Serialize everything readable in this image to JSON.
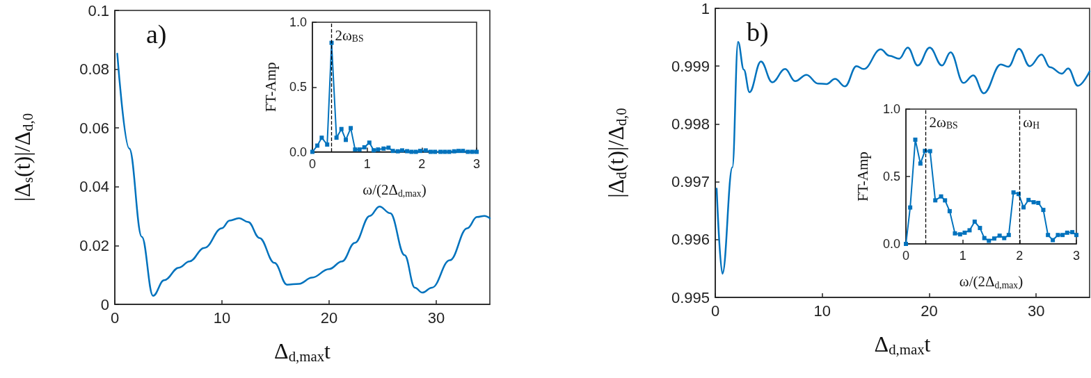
{
  "chart_data": [
    {
      "type": "line",
      "xlabel": "Δ$_{d,max}$t",
      "ylabel": "|Δ$_{s}$(t)|/Δ$_{d,0}$",
      "annotations": [
        "a)"
      ],
      "marker": "none",
      "grid": false,
      "xlim": [
        0,
        35
      ],
      "xticks": [
        0,
        10,
        20,
        30
      ],
      "ylim": [
        0,
        0.1
      ],
      "yticks": [
        0,
        0.02,
        0.04,
        0.06,
        0.08,
        0.1
      ],
      "x": [
        0.23,
        1.35,
        2.52,
        3.57,
        4.6,
        6.0,
        6.96,
        8.36,
        10,
        10.7,
        11.6,
        12.45,
        13.5,
        14.9,
        16.07,
        17.2,
        18.4,
        20,
        21.2,
        22.4,
        23.8,
        24.7,
        25.7,
        27.05,
        28,
        28.7,
        29.6,
        31.26,
        32.9,
        33.8,
        34.5,
        35
      ],
      "series": [
        {
          "color": "#0072bd",
          "values": [
            0.0853,
            0.053,
            0.023,
            0.0029,
            0.0082,
            0.0125,
            0.0146,
            0.0192,
            0.0259,
            0.0285,
            0.0293,
            0.028,
            0.0226,
            0.0141,
            0.0067,
            0.007,
            0.0091,
            0.012,
            0.0146,
            0.0209,
            0.0301,
            0.0333,
            0.031,
            0.0167,
            0.0057,
            0.004,
            0.0057,
            0.015,
            0.0259,
            0.0297,
            0.0301,
            0.0293
          ]
        }
      ]
    },
    {
      "type": "line",
      "xlabel": "ω/(2Δ$_{d,max}$)",
      "ylabel": "FT-Amp",
      "marker": "square",
      "grid": false,
      "xlim": [
        0,
        3
      ],
      "xticks": [
        0,
        1,
        2,
        3
      ],
      "ylim": [
        0,
        1
      ],
      "yticks": [
        {
          "value": 0,
          "label": "0.0"
        },
        {
          "value": 0.5,
          "label": "0.5"
        },
        {
          "value": 1,
          "label": "1.0"
        }
      ],
      "ref_lines": [
        {
          "axis": "x",
          "value": 0.35,
          "label": "2ω$_{BS}$",
          "color": "#000000",
          "line_style": "dashed"
        }
      ],
      "x": [
        0,
        0.09,
        0.17,
        0.27,
        0.35,
        0.44,
        0.53,
        0.61,
        0.7,
        0.78,
        0.86,
        0.95,
        1.04,
        1.12,
        1.2,
        1.3,
        1.39,
        1.47,
        1.56,
        1.64,
        1.73,
        1.81,
        1.89,
        1.97,
        2.07,
        2.16,
        2.24,
        2.34,
        2.42,
        2.5,
        2.59,
        2.67,
        2.75,
        2.84,
        2.92,
        3.0
      ],
      "series": [
        {
          "color": "#0072bd",
          "values": [
            0,
            0.048,
            0.109,
            0.056,
            0.841,
            0.109,
            0.176,
            0.092,
            0.183,
            0.018,
            0.018,
            0.035,
            0.071,
            0.012,
            0.018,
            0.025,
            0.032,
            0.007,
            0.004,
            0.011,
            0.005,
            0,
            0,
            0.007,
            0.011,
            0,
            0,
            0,
            0,
            0,
            0.004,
            0.007,
            0.007,
            0,
            0,
            0
          ]
        }
      ]
    },
    {
      "type": "line",
      "xlabel": "Δ$_{d,max}$t",
      "ylabel": "|Δ$_{d}$(t)|/Δ$_{d,0}$",
      "annotations": [
        "b)"
      ],
      "marker": "none",
      "grid": false,
      "xlim": [
        0,
        35
      ],
      "xticks": [
        0,
        10,
        20,
        30
      ],
      "ylim": [
        0.995,
        1
      ],
      "yticks": [
        0.995,
        0.996,
        0.997,
        0.998,
        0.999,
        1
      ],
      "x": [
        0.13,
        0.67,
        1.6,
        2.13,
        2.67,
        3.2,
        4.27,
        5.33,
        6.53,
        7.47,
        8.53,
        9.6,
        10.4,
        11.2,
        12.13,
        13.2,
        13.87,
        15.47,
        16.27,
        17.2,
        18,
        18.93,
        20.05,
        21.2,
        22,
        23.2,
        24.13,
        25.1,
        26.7,
        27.4,
        28.4,
        29.4,
        30.5,
        31.3,
        32.4,
        33.0,
        33.9,
        35
      ],
      "series": [
        {
          "color": "#0072bd",
          "values": [
            0.99688,
            0.99541,
            0.99725,
            0.99942,
            0.99894,
            0.99855,
            0.99908,
            0.99872,
            0.99895,
            0.99874,
            0.99885,
            0.9987,
            0.99869,
            0.99878,
            0.99865,
            0.999,
            0.99895,
            0.99929,
            0.99918,
            0.99913,
            0.99932,
            0.99901,
            0.99932,
            0.99901,
            0.99924,
            0.99871,
            0.99884,
            0.99853,
            0.99903,
            0.99899,
            0.9993,
            0.999,
            0.9992,
            0.99898,
            0.99887,
            0.99896,
            0.99866,
            0.99891
          ]
        }
      ]
    },
    {
      "type": "line",
      "xlabel": "ω/(2Δ$_{d,max}$)",
      "ylabel": "FT-Amp",
      "marker": "square",
      "grid": false,
      "xlim": [
        0,
        3
      ],
      "xticks": [
        0,
        1,
        2,
        3
      ],
      "ylim": [
        0,
        1
      ],
      "yticks": [
        {
          "value": 0,
          "label": "0.0"
        },
        {
          "value": 0.5,
          "label": "0.5"
        },
        {
          "value": 1,
          "label": "1.0"
        }
      ],
      "ref_lines": [
        {
          "axis": "x",
          "value": 0.35,
          "label": "2ω$_{BS}$",
          "color": "#000000",
          "line_style": "dashed"
        },
        {
          "axis": "x",
          "value": 2.0,
          "label": "ω$_{H}$",
          "color": "#000000",
          "line_style": "dashed"
        }
      ],
      "x": [
        0,
        0.075,
        0.165,
        0.255,
        0.335,
        0.425,
        0.517,
        0.619,
        0.688,
        0.77,
        0.863,
        0.953,
        1.034,
        1.12,
        1.21,
        1.303,
        1.38,
        1.46,
        1.555,
        1.649,
        1.73,
        1.81,
        1.893,
        1.983,
        2.07,
        2.158,
        2.248,
        2.33,
        2.418,
        2.5,
        2.585,
        2.675,
        2.757,
        2.838,
        2.928,
        3.0
      ],
      "series": [
        {
          "color": "#0072bd",
          "values": [
            0,
            0.27,
            0.773,
            0.596,
            0.69,
            0.688,
            0.323,
            0.352,
            0.323,
            0.243,
            0.078,
            0.071,
            0.083,
            0.101,
            0.165,
            0.118,
            0.043,
            0.023,
            0.04,
            0.061,
            0.043,
            0.066,
            0.382,
            0.37,
            0.271,
            0.326,
            0.309,
            0.304,
            0.252,
            0.066,
            0.028,
            0.066,
            0.066,
            0.083,
            0.087,
            0.066
          ]
        }
      ]
    }
  ]
}
